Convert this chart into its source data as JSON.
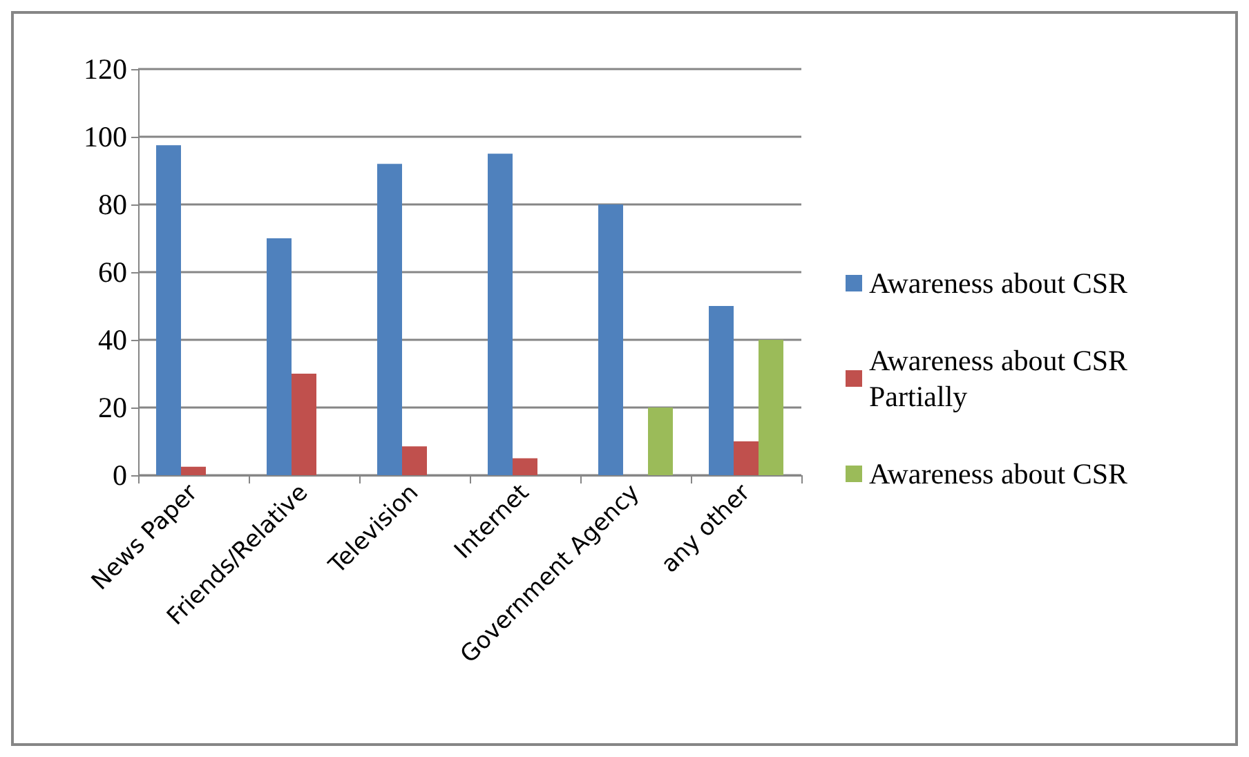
{
  "chart_data": {
    "type": "bar",
    "categories": [
      "News Paper",
      "Friends/Relative",
      "Television",
      "Internet",
      "Government Agency",
      "any other"
    ],
    "series": [
      {
        "name": "Awareness about CSR",
        "color": "#4f81bd",
        "values": [
          97.5,
          70,
          92,
          95,
          80,
          50
        ]
      },
      {
        "name": "Awareness about CSR Partially",
        "color": "#c0504d",
        "values": [
          2.5,
          30,
          8.5,
          5,
          null,
          10
        ]
      },
      {
        "name": "Awareness about CSR",
        "color": "#9bbb59",
        "values": [
          null,
          null,
          null,
          null,
          20,
          40
        ]
      }
    ],
    "ylim": [
      0,
      120
    ],
    "yticks": [
      0,
      20,
      40,
      60,
      80,
      100,
      120
    ],
    "grid": "y",
    "legend": "right"
  }
}
